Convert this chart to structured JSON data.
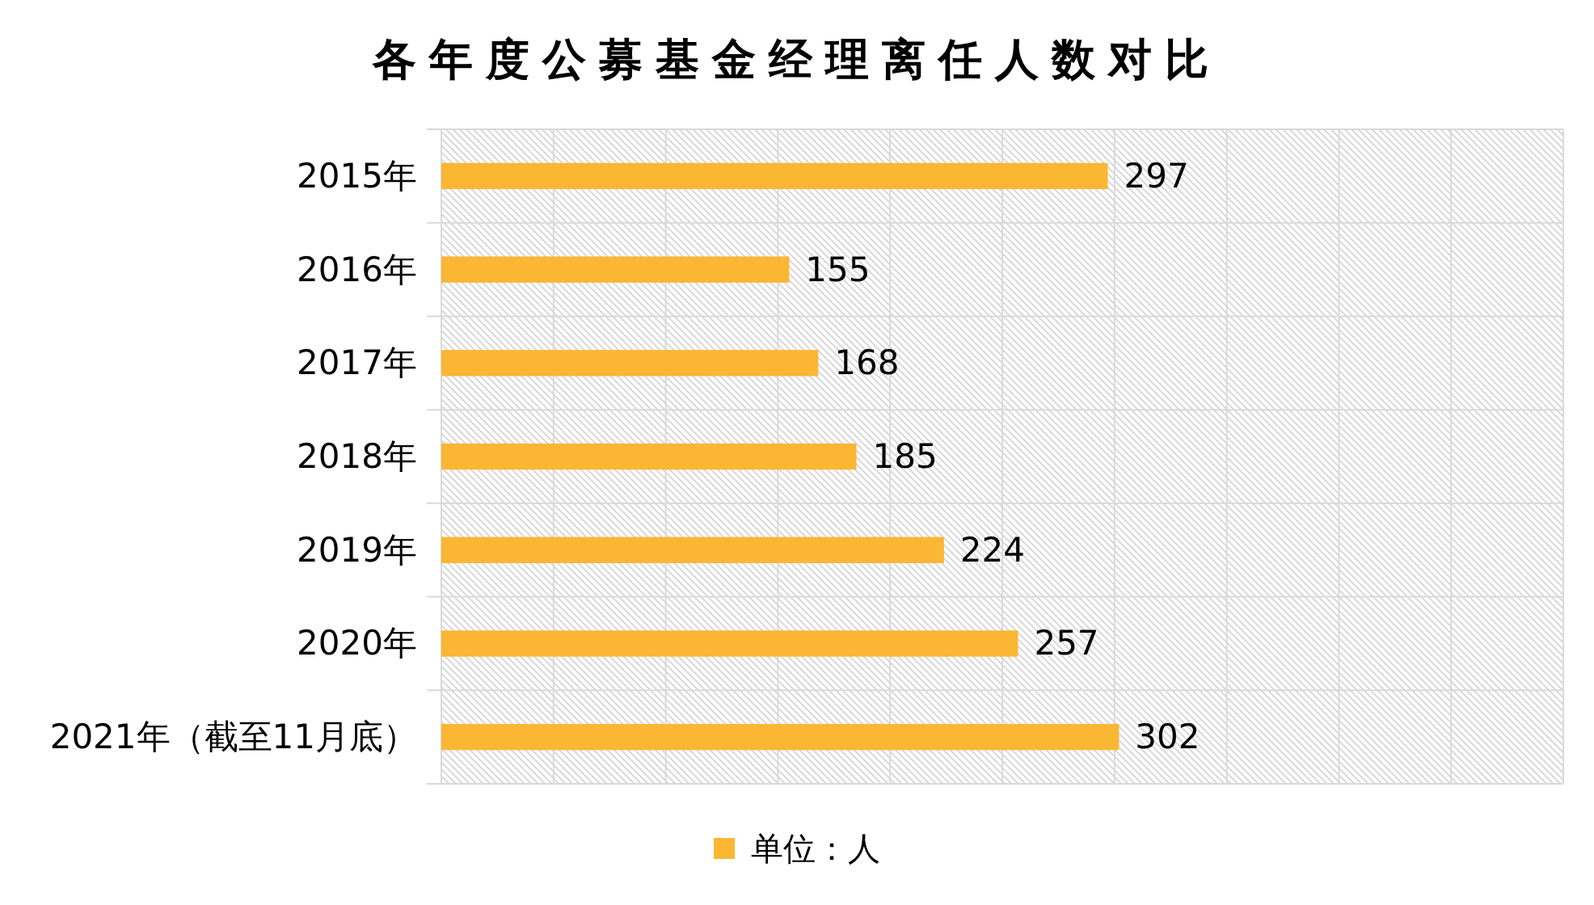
{
  "chart_data": {
    "type": "bar",
    "orientation": "horizontal",
    "title": "各年度公募基金经理离任人数对比",
    "categories": [
      "2015年",
      "2016年",
      "2017年",
      "2018年",
      "2019年",
      "2020年",
      "2021年（截至11月底）"
    ],
    "series": [
      {
        "name": "单位：人",
        "color": "#fbb634",
        "values": [
          297,
          155,
          168,
          185,
          224,
          257,
          302
        ]
      }
    ],
    "xlim": [
      0,
      500
    ],
    "xticks": [
      {
        "value": 0,
        "label": null
      },
      {
        "value": 50,
        "label": null
      },
      {
        "value": 100,
        "label": null
      },
      {
        "value": 150,
        "label": null
      },
      {
        "value": 200,
        "label": null
      },
      {
        "value": 250,
        "label": null
      },
      {
        "value": 300,
        "label": null
      },
      {
        "value": 350,
        "label": null
      },
      {
        "value": 400,
        "label": null
      },
      {
        "value": 450,
        "label": null
      },
      {
        "value": 500,
        "label": null
      }
    ],
    "grid": true,
    "legend": "bottom",
    "data_labels": true,
    "tick_labels": "y"
  }
}
